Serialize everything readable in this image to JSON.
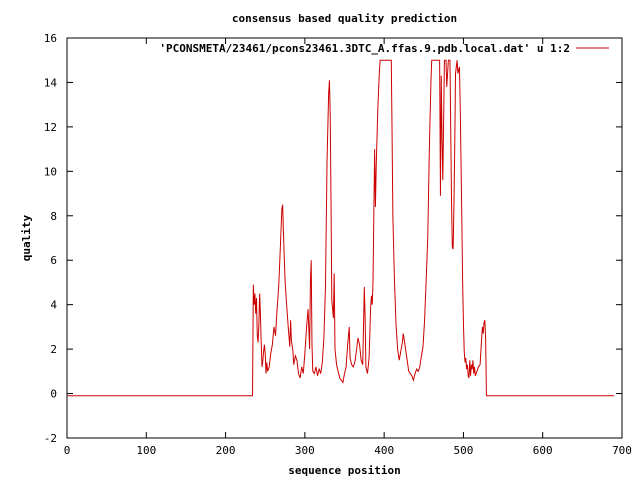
{
  "chart_data": {
    "type": "line",
    "title": "consensus based quality prediction",
    "xlabel": "sequence position",
    "ylabel": "quality",
    "xlim": [
      0,
      700
    ],
    "ylim": [
      -2,
      16
    ],
    "xticks": [
      0,
      100,
      200,
      300,
      400,
      500,
      600,
      700
    ],
    "yticks": [
      -2,
      0,
      2,
      4,
      6,
      8,
      10,
      12,
      14,
      16
    ],
    "grid": false,
    "legend_position": "top-right",
    "series": [
      {
        "name": "'PCONSMETA/23461/pcons23461.3DTC_A.ffas.9.pdb.local.dat' u 1:2",
        "color": "#cc0000",
        "points": [
          [
            1,
            -0.1
          ],
          [
            234,
            -0.1
          ],
          [
            235,
            4.9
          ],
          [
            236,
            4.0
          ],
          [
            237,
            4.5
          ],
          [
            238,
            3.6
          ],
          [
            239,
            4.3
          ],
          [
            240,
            2.6
          ],
          [
            241,
            2.3
          ],
          [
            242,
            3.1
          ],
          [
            243,
            4.5
          ],
          [
            244,
            3.5
          ],
          [
            245,
            2.2
          ],
          [
            246,
            1.2
          ],
          [
            247,
            1.5
          ],
          [
            248,
            1.9
          ],
          [
            249,
            2.2
          ],
          [
            250,
            1.8
          ],
          [
            251,
            0.9
          ],
          [
            252,
            1.4
          ],
          [
            253,
            1.0
          ],
          [
            255,
            1.2
          ],
          [
            257,
            1.8
          ],
          [
            259,
            2.2
          ],
          [
            261,
            3.0
          ],
          [
            263,
            2.6
          ],
          [
            265,
            3.8
          ],
          [
            267,
            4.8
          ],
          [
            269,
            6.5
          ],
          [
            271,
            8.3
          ],
          [
            272,
            8.5
          ],
          [
            273,
            7.2
          ],
          [
            275,
            5.1
          ],
          [
            277,
            4.0
          ],
          [
            279,
            3.0
          ],
          [
            281,
            2.1
          ],
          [
            282,
            3.3
          ],
          [
            283,
            2.4
          ],
          [
            285,
            1.9
          ],
          [
            286,
            1.3
          ],
          [
            288,
            1.7
          ],
          [
            290,
            1.5
          ],
          [
            292,
            0.9
          ],
          [
            294,
            0.7
          ],
          [
            296,
            1.2
          ],
          [
            298,
            0.9
          ],
          [
            300,
            1.8
          ],
          [
            302,
            2.9
          ],
          [
            304,
            3.8
          ],
          [
            306,
            2.0
          ],
          [
            307,
            5.0
          ],
          [
            308,
            6.0
          ],
          [
            309,
            2.2
          ],
          [
            310,
            1.0
          ],
          [
            312,
            0.9
          ],
          [
            314,
            1.2
          ],
          [
            316,
            0.8
          ],
          [
            318,
            1.1
          ],
          [
            320,
            0.9
          ],
          [
            322,
            1.4
          ],
          [
            324,
            2.5
          ],
          [
            326,
            4.8
          ],
          [
            328,
            10.5
          ],
          [
            330,
            13.5
          ],
          [
            331,
            14.1
          ],
          [
            332,
            12.5
          ],
          [
            333,
            8.6
          ],
          [
            334,
            4.2
          ],
          [
            336,
            3.4
          ],
          [
            337,
            5.4
          ],
          [
            338,
            2.0
          ],
          [
            340,
            1.3
          ],
          [
            342,
            1.0
          ],
          [
            344,
            0.7
          ],
          [
            346,
            0.6
          ],
          [
            348,
            0.5
          ],
          [
            350,
            0.9
          ],
          [
            352,
            1.2
          ],
          [
            354,
            2.2
          ],
          [
            356,
            3.0
          ],
          [
            357,
            1.6
          ],
          [
            359,
            1.3
          ],
          [
            361,
            1.2
          ],
          [
            363,
            1.4
          ],
          [
            365,
            1.9
          ],
          [
            367,
            2.5
          ],
          [
            369,
            2.2
          ],
          [
            371,
            1.5
          ],
          [
            373,
            1.3
          ],
          [
            375,
            4.8
          ],
          [
            376,
            3.4
          ],
          [
            377,
            1.2
          ],
          [
            379,
            0.9
          ],
          [
            381,
            1.6
          ],
          [
            383,
            3.9
          ],
          [
            384,
            4.4
          ],
          [
            385,
            4.0
          ],
          [
            386,
            5.1
          ],
          [
            387,
            8.1
          ],
          [
            388,
            11.0
          ],
          [
            389,
            8.4
          ],
          [
            390,
            10.2
          ],
          [
            392,
            12.8
          ],
          [
            394,
            14.5
          ],
          [
            395,
            15.0
          ],
          [
            397,
            15.0
          ],
          [
            409,
            15.0
          ],
          [
            410,
            11.7
          ],
          [
            411,
            8.0
          ],
          [
            413,
            5.1
          ],
          [
            415,
            3.1
          ],
          [
            417,
            2.0
          ],
          [
            419,
            1.5
          ],
          [
            421,
            1.9
          ],
          [
            423,
            2.3
          ],
          [
            424,
            2.7
          ],
          [
            425,
            2.5
          ],
          [
            427,
            2.0
          ],
          [
            429,
            1.5
          ],
          [
            431,
            1.0
          ],
          [
            433,
            0.9
          ],
          [
            435,
            0.8
          ],
          [
            437,
            0.6
          ],
          [
            439,
            0.9
          ],
          [
            441,
            1.1
          ],
          [
            443,
            1.0
          ],
          [
            445,
            1.2
          ],
          [
            447,
            1.7
          ],
          [
            449,
            2.1
          ],
          [
            451,
            3.3
          ],
          [
            453,
            5.1
          ],
          [
            455,
            7.0
          ],
          [
            457,
            11.0
          ],
          [
            459,
            14.0
          ],
          [
            460,
            15.0
          ],
          [
            470,
            15.0
          ],
          [
            471,
            8.9
          ],
          [
            472,
            14.3
          ],
          [
            473,
            11.5
          ],
          [
            474,
            9.6
          ],
          [
            475,
            12.2
          ],
          [
            476,
            15.0
          ],
          [
            478,
            15.0
          ],
          [
            479,
            13.8
          ],
          [
            481,
            15.0
          ],
          [
            483,
            15.0
          ],
          [
            484,
            11.8
          ],
          [
            485,
            8.6
          ],
          [
            486,
            6.6
          ],
          [
            487,
            6.5
          ],
          [
            488,
            8.4
          ],
          [
            489,
            11.0
          ],
          [
            490,
            14.4
          ],
          [
            491,
            14.7
          ],
          [
            492,
            15.0
          ],
          [
            493,
            14.4
          ],
          [
            495,
            14.7
          ],
          [
            496,
            12.8
          ],
          [
            497,
            10.3
          ],
          [
            498,
            7.8
          ],
          [
            499,
            5.0
          ],
          [
            500,
            3.2
          ],
          [
            501,
            1.9
          ],
          [
            502,
            1.4
          ],
          [
            503,
            1.6
          ],
          [
            504,
            1.1
          ],
          [
            505,
            1.3
          ],
          [
            506,
            0.8
          ],
          [
            507,
            0.7
          ],
          [
            508,
            1.5
          ],
          [
            509,
            0.8
          ],
          [
            510,
            1.3
          ],
          [
            511,
            1.1
          ],
          [
            512,
            1.5
          ],
          [
            513,
            0.9
          ],
          [
            514,
            1.2
          ],
          [
            515,
            0.8
          ],
          [
            517,
            1.0
          ],
          [
            519,
            1.2
          ],
          [
            521,
            1.3
          ],
          [
            523,
            2.5
          ],
          [
            524,
            3.0
          ],
          [
            525,
            2.7
          ],
          [
            526,
            3.2
          ],
          [
            527,
            3.3
          ],
          [
            528,
            2.5
          ],
          [
            529,
            -0.1
          ],
          [
            690,
            -0.1
          ]
        ]
      }
    ]
  }
}
